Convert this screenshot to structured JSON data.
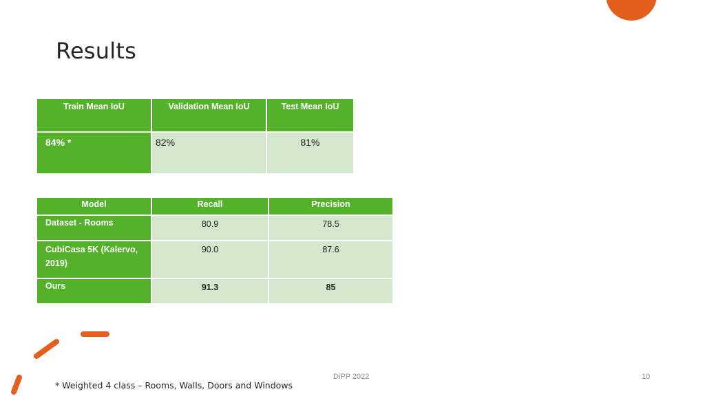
{
  "slide": {
    "title": "Results",
    "accent_color": "#e35f1b",
    "table_dark_color": "#53b22a",
    "table_light_color": "#d2e7cb"
  },
  "iou_table": {
    "headers": [
      "Train Mean IoU",
      "Validation Mean IoU",
      "Test Mean IoU"
    ],
    "values": [
      "84% *",
      "82%",
      "81%"
    ]
  },
  "metrics_table": {
    "headers": [
      "Model",
      "Recall",
      "Precision"
    ],
    "rows": [
      {
        "model": "Dataset - Rooms",
        "recall": "80.9",
        "precision": "78.5"
      },
      {
        "model": "CubiCasa 5K (Kalervo, 2019)",
        "recall": "90.0",
        "precision": "87.6"
      },
      {
        "model": "Ours",
        "recall": "91.3",
        "precision": "85"
      }
    ]
  },
  "footnote": "* Weighted 4 class – Rooms, Walls, Doors and Windows",
  "footer": {
    "center": "DiPP 2022",
    "page_number": "10"
  }
}
